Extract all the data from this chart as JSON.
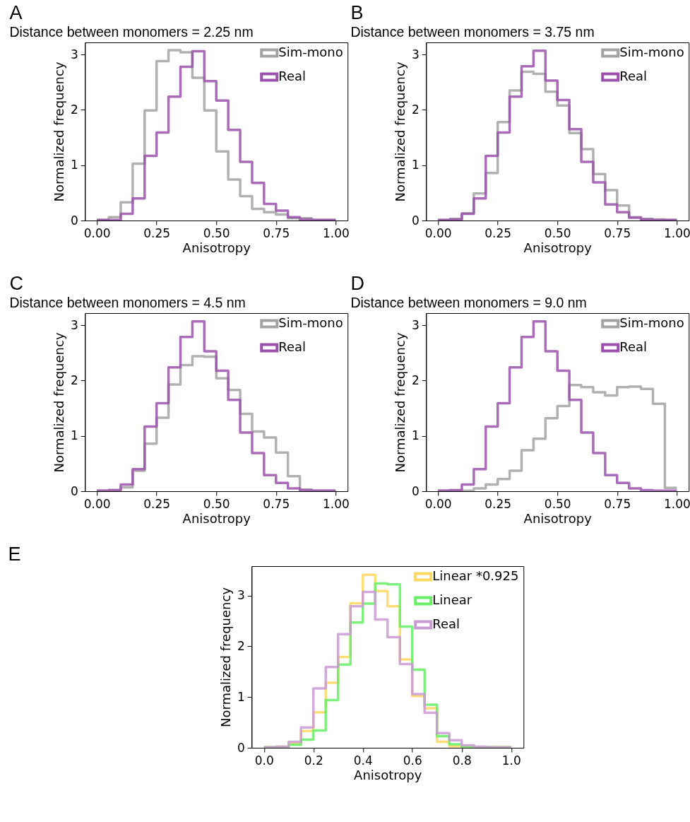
{
  "chart_data": [
    {
      "type": "histogram",
      "title": "Distance between monomers = 2.25 nm",
      "annotations": [
        "A"
      ],
      "xlabel": "Anisotropy",
      "ylabel": "Normalized frequency",
      "bins": [
        0,
        0.05,
        0.1,
        0.15,
        0.2,
        0.25,
        0.3,
        0.35,
        0.4,
        0.45,
        0.5,
        0.55,
        0.6,
        0.65,
        0.7,
        0.75,
        0.8,
        0.85,
        0.9,
        0.95,
        1
      ],
      "series": [
        {
          "name": "Sim-mono",
          "color": "#a3a3a3",
          "values": [
            0.01,
            0.06,
            0.33,
            1.03,
            1.99,
            2.88,
            3.08,
            3.04,
            2.58,
            1.99,
            1.25,
            0.74,
            0.44,
            0.21,
            0.15,
            0.11,
            0.04,
            0.04,
            0.01,
            0.01
          ]
        },
        {
          "name": "Real",
          "color": "#9b51ab",
          "values": [
            0.01,
            0.01,
            0.12,
            0.4,
            1.17,
            1.59,
            2.24,
            2.78,
            3.06,
            2.52,
            2.17,
            1.64,
            1.06,
            0.68,
            0.3,
            0.18,
            0.06,
            0.02,
            0.01,
            0.01
          ]
        }
      ],
      "xlim": [
        -0.05,
        1.05
      ],
      "xticks": [
        {
          "value": 0,
          "label": "0.00"
        },
        {
          "value": 0.25,
          "label": "0.25"
        },
        {
          "value": 0.5,
          "label": "0.50"
        },
        {
          "value": 0.75,
          "label": "0.75"
        },
        {
          "value": 1,
          "label": "1.00"
        }
      ],
      "ylim": [
        0,
        3.22
      ],
      "yticks": [
        0,
        1,
        2,
        3
      ],
      "legend": "top right",
      "grid": false
    },
    {
      "type": "histogram",
      "title": "Distance between monomers = 3.75 nm",
      "annotations": [
        "B"
      ],
      "xlabel": "Anisotropy",
      "ylabel": "Normalized frequency",
      "bins": [
        0,
        0.05,
        0.1,
        0.15,
        0.2,
        0.25,
        0.3,
        0.35,
        0.4,
        0.45,
        0.5,
        0.55,
        0.6,
        0.65,
        0.7,
        0.75,
        0.8,
        0.85,
        0.9,
        0.95,
        1
      ],
      "series": [
        {
          "name": "Sim-mono",
          "color": "#a3a3a3",
          "values": [
            0.01,
            0.03,
            0.13,
            0.49,
            0.86,
            1.78,
            2.35,
            2.69,
            2.65,
            2.33,
            2.08,
            1.58,
            1.29,
            0.84,
            0.55,
            0.27,
            0.06,
            0.03,
            0.02,
            0.01
          ]
        },
        {
          "name": "Real",
          "color": "#9b51ab",
          "values": [
            0.01,
            0.02,
            0.12,
            0.4,
            1.17,
            1.59,
            2.24,
            2.79,
            3.07,
            2.53,
            2.18,
            1.65,
            1.06,
            0.69,
            0.29,
            0.15,
            0.05,
            0.02,
            0.01,
            0.01
          ]
        }
      ],
      "xlim": [
        -0.05,
        1.05
      ],
      "xticks": [
        {
          "value": 0,
          "label": "0.00"
        },
        {
          "value": 0.25,
          "label": "0.25"
        },
        {
          "value": 0.5,
          "label": "0.50"
        },
        {
          "value": 0.75,
          "label": "0.75"
        },
        {
          "value": 1,
          "label": "1.00"
        }
      ],
      "ylim": [
        0,
        3.22
      ],
      "yticks": [
        0,
        1,
        2,
        3
      ],
      "legend": "top right",
      "grid": false
    },
    {
      "type": "histogram",
      "title": "Distance between monomers = 4.5 nm",
      "annotations": [
        "C"
      ],
      "xlabel": "Anisotropy",
      "ylabel": "Normalized frequency",
      "bins": [
        0,
        0.05,
        0.1,
        0.15,
        0.2,
        0.25,
        0.3,
        0.35,
        0.4,
        0.45,
        0.5,
        0.55,
        0.6,
        0.65,
        0.7,
        0.75,
        0.8,
        0.85,
        0.9,
        0.95,
        1
      ],
      "series": [
        {
          "name": "Sim-mono",
          "color": "#a3a3a3",
          "values": [
            0.01,
            0.02,
            0.07,
            0.37,
            0.86,
            1.33,
            1.93,
            2.28,
            2.44,
            2.43,
            2.04,
            1.83,
            1.4,
            1.08,
            0.97,
            0.7,
            0.27,
            0.03,
            0.01,
            0.01
          ]
        },
        {
          "name": "Real",
          "color": "#9b51ab",
          "values": [
            0.01,
            0.02,
            0.12,
            0.4,
            1.17,
            1.59,
            2.24,
            2.79,
            3.07,
            2.53,
            2.18,
            1.65,
            1.06,
            0.69,
            0.29,
            0.15,
            0.05,
            0.02,
            0.01,
            0.01
          ]
        }
      ],
      "xlim": [
        -0.05,
        1.05
      ],
      "xticks": [
        {
          "value": 0,
          "label": "0.00"
        },
        {
          "value": 0.25,
          "label": "0.25"
        },
        {
          "value": 0.5,
          "label": "0.50"
        },
        {
          "value": 0.75,
          "label": "0.75"
        },
        {
          "value": 1,
          "label": "1.00"
        }
      ],
      "ylim": [
        0,
        3.22
      ],
      "yticks": [
        0,
        1,
        2,
        3
      ],
      "legend": "top right",
      "grid": false
    },
    {
      "type": "histogram",
      "title": "Distance between monomers = 9.0 nm",
      "annotations": [
        "D"
      ],
      "xlabel": "Anisotropy",
      "ylabel": "Normalized frequency",
      "bins": [
        0,
        0.05,
        0.1,
        0.15,
        0.2,
        0.25,
        0.3,
        0.35,
        0.4,
        0.45,
        0.5,
        0.55,
        0.6,
        0.65,
        0.7,
        0.75,
        0.8,
        0.85,
        0.9,
        0.95,
        1
      ],
      "series": [
        {
          "name": "Sim-mono",
          "color": "#a3a3a3",
          "values": [
            0.01,
            0.01,
            0.01,
            0.05,
            0.12,
            0.22,
            0.37,
            0.74,
            0.95,
            1.32,
            1.54,
            1.92,
            1.88,
            1.79,
            1.73,
            1.88,
            1.89,
            1.85,
            1.58,
            0.06
          ]
        },
        {
          "name": "Real",
          "color": "#9b51ab",
          "values": [
            0.01,
            0.02,
            0.12,
            0.4,
            1.17,
            1.59,
            2.24,
            2.79,
            3.07,
            2.53,
            2.18,
            1.65,
            1.06,
            0.69,
            0.29,
            0.15,
            0.05,
            0.02,
            0.01,
            0.01
          ]
        }
      ],
      "xlim": [
        -0.05,
        1.05
      ],
      "xticks": [
        {
          "value": 0,
          "label": "0.00"
        },
        {
          "value": 0.25,
          "label": "0.25"
        },
        {
          "value": 0.5,
          "label": "0.50"
        },
        {
          "value": 0.75,
          "label": "0.75"
        },
        {
          "value": 1,
          "label": "1.00"
        }
      ],
      "ylim": [
        0,
        3.22
      ],
      "yticks": [
        0,
        1,
        2,
        3
      ],
      "legend": "top right",
      "grid": false
    },
    {
      "type": "histogram",
      "annotations": [
        "E"
      ],
      "xlabel": "Anisotropy",
      "ylabel": "Normalized frequency",
      "bins": [
        0,
        0.05,
        0.1,
        0.15,
        0.2,
        0.25,
        0.3,
        0.35,
        0.4,
        0.45,
        0.5,
        0.55,
        0.6,
        0.65,
        0.7,
        0.75,
        0.8,
        0.85,
        0.9,
        0.95,
        1
      ],
      "series": [
        {
          "name": "Linear *0.925",
          "color": "#fbd862",
          "values": [
            0.01,
            0.02,
            0.08,
            0.33,
            0.7,
            1.28,
            1.79,
            2.85,
            3.41,
            3.09,
            2.79,
            1.74,
            1.02,
            0.78,
            0.12,
            0.03,
            0.01,
            0.01,
            0.01,
            0.01
          ]
        },
        {
          "name": "Linear",
          "color": "#66ee66",
          "values": [
            0.01,
            0.01,
            0.06,
            0.16,
            0.34,
            0.94,
            1.64,
            2.47,
            2.84,
            3.24,
            3.22,
            2.39,
            1.54,
            0.85,
            0.23,
            0.07,
            0.02,
            0.01,
            0.01,
            0.01
          ]
        },
        {
          "name": "Real",
          "color": "#c99ad4",
          "values": [
            0.01,
            0.02,
            0.12,
            0.4,
            1.17,
            1.59,
            2.24,
            2.79,
            3.07,
            2.53,
            2.18,
            1.65,
            1.06,
            0.69,
            0.29,
            0.15,
            0.05,
            0.02,
            0.01,
            0.01
          ]
        }
      ],
      "xlim": [
        -0.05,
        1.05
      ],
      "xticks": [
        {
          "value": 0,
          "label": "0.0"
        },
        {
          "value": 0.2,
          "label": "0.2"
        },
        {
          "value": 0.4,
          "label": "0.4"
        },
        {
          "value": 0.6,
          "label": "0.6"
        },
        {
          "value": 0.8,
          "label": "0.8"
        },
        {
          "value": 1,
          "label": "1.0"
        }
      ],
      "ylim": [
        0,
        3.58
      ],
      "yticks": [
        0,
        1,
        2,
        3
      ],
      "legend": "top right",
      "grid": false
    }
  ]
}
